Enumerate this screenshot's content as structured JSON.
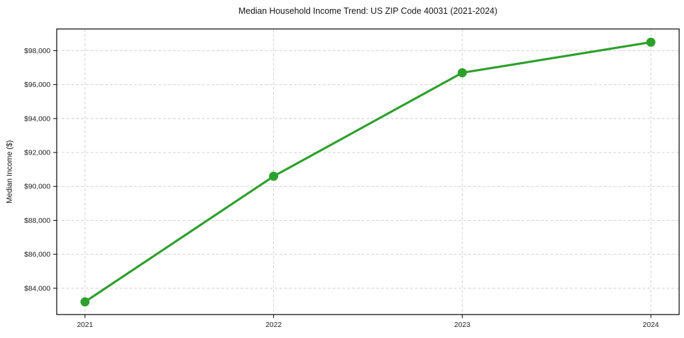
{
  "chart_data": {
    "type": "line",
    "title": "Median Household Income Trend: US ZIP Code 40031 (2021-2024)",
    "xlabel": "",
    "ylabel": "Median Income ($)",
    "x": [
      2021,
      2022,
      2023,
      2024
    ],
    "series": [
      {
        "name": "Median Household Income",
        "values": [
          83200,
          90600,
          96700,
          98500
        ],
        "color": "#2ca02c"
      }
    ],
    "x_ticks": [
      {
        "value": 2021,
        "label": "2021"
      },
      {
        "value": 2022,
        "label": "2022"
      },
      {
        "value": 2023,
        "label": "2023"
      },
      {
        "value": 2024,
        "label": "2024"
      }
    ],
    "y_ticks": [
      {
        "value": 84000,
        "label": "$84,000"
      },
      {
        "value": 86000,
        "label": "$86,000"
      },
      {
        "value": 88000,
        "label": "$88,000"
      },
      {
        "value": 90000,
        "label": "$90,000"
      },
      {
        "value": 92000,
        "label": "$92,000"
      },
      {
        "value": 94000,
        "label": "$94,000"
      },
      {
        "value": 96000,
        "label": "$96,000"
      },
      {
        "value": 98000,
        "label": "$98,000"
      }
    ],
    "xlim": [
      2020.85,
      2024.15
    ],
    "ylim": [
      82450,
      99280
    ],
    "grid": "dashed-both-axes",
    "legend": "none",
    "marker": "circle",
    "colors": {
      "line": "#2ca02c",
      "grid": "#cccccc",
      "axis": "#000000",
      "text": "#202020",
      "background": "#ffffff"
    }
  }
}
